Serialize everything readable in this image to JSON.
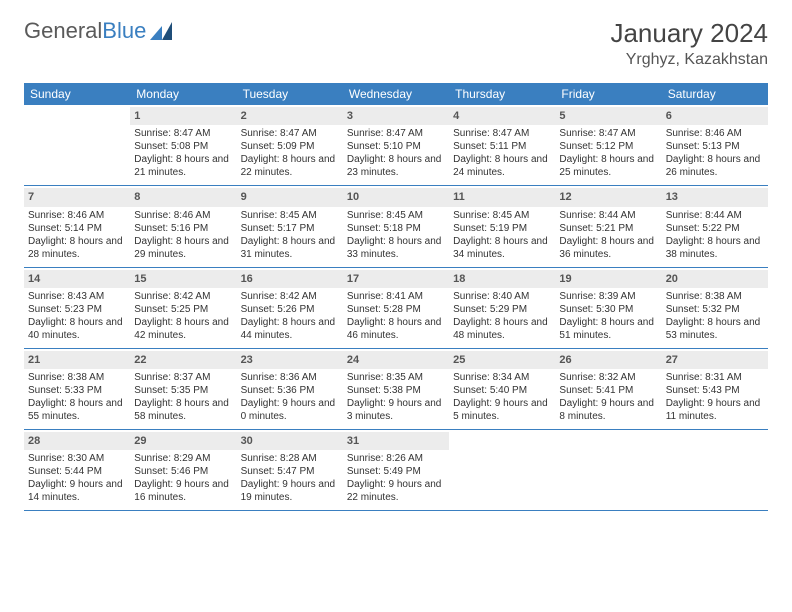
{
  "logo": {
    "text1": "General",
    "text2": "Blue"
  },
  "title": "January 2024",
  "location": "Yrghyz, Kazakhstan",
  "colors": {
    "header_bg": "#3a7fc0",
    "header_text": "#ffffff",
    "daynum_bg": "#ececec",
    "border": "#3a7fc0",
    "body_text": "#333333",
    "page_bg": "#ffffff"
  },
  "day_headers": [
    "Sunday",
    "Monday",
    "Tuesday",
    "Wednesday",
    "Thursday",
    "Friday",
    "Saturday"
  ],
  "weeks": [
    [
      {
        "n": "",
        "sr": "",
        "ss": "",
        "dl": ""
      },
      {
        "n": "1",
        "sr": "Sunrise: 8:47 AM",
        "ss": "Sunset: 5:08 PM",
        "dl": "Daylight: 8 hours and 21 minutes."
      },
      {
        "n": "2",
        "sr": "Sunrise: 8:47 AM",
        "ss": "Sunset: 5:09 PM",
        "dl": "Daylight: 8 hours and 22 minutes."
      },
      {
        "n": "3",
        "sr": "Sunrise: 8:47 AM",
        "ss": "Sunset: 5:10 PM",
        "dl": "Daylight: 8 hours and 23 minutes."
      },
      {
        "n": "4",
        "sr": "Sunrise: 8:47 AM",
        "ss": "Sunset: 5:11 PM",
        "dl": "Daylight: 8 hours and 24 minutes."
      },
      {
        "n": "5",
        "sr": "Sunrise: 8:47 AM",
        "ss": "Sunset: 5:12 PM",
        "dl": "Daylight: 8 hours and 25 minutes."
      },
      {
        "n": "6",
        "sr": "Sunrise: 8:46 AM",
        "ss": "Sunset: 5:13 PM",
        "dl": "Daylight: 8 hours and 26 minutes."
      }
    ],
    [
      {
        "n": "7",
        "sr": "Sunrise: 8:46 AM",
        "ss": "Sunset: 5:14 PM",
        "dl": "Daylight: 8 hours and 28 minutes."
      },
      {
        "n": "8",
        "sr": "Sunrise: 8:46 AM",
        "ss": "Sunset: 5:16 PM",
        "dl": "Daylight: 8 hours and 29 minutes."
      },
      {
        "n": "9",
        "sr": "Sunrise: 8:45 AM",
        "ss": "Sunset: 5:17 PM",
        "dl": "Daylight: 8 hours and 31 minutes."
      },
      {
        "n": "10",
        "sr": "Sunrise: 8:45 AM",
        "ss": "Sunset: 5:18 PM",
        "dl": "Daylight: 8 hours and 33 minutes."
      },
      {
        "n": "11",
        "sr": "Sunrise: 8:45 AM",
        "ss": "Sunset: 5:19 PM",
        "dl": "Daylight: 8 hours and 34 minutes."
      },
      {
        "n": "12",
        "sr": "Sunrise: 8:44 AM",
        "ss": "Sunset: 5:21 PM",
        "dl": "Daylight: 8 hours and 36 minutes."
      },
      {
        "n": "13",
        "sr": "Sunrise: 8:44 AM",
        "ss": "Sunset: 5:22 PM",
        "dl": "Daylight: 8 hours and 38 minutes."
      }
    ],
    [
      {
        "n": "14",
        "sr": "Sunrise: 8:43 AM",
        "ss": "Sunset: 5:23 PM",
        "dl": "Daylight: 8 hours and 40 minutes."
      },
      {
        "n": "15",
        "sr": "Sunrise: 8:42 AM",
        "ss": "Sunset: 5:25 PM",
        "dl": "Daylight: 8 hours and 42 minutes."
      },
      {
        "n": "16",
        "sr": "Sunrise: 8:42 AM",
        "ss": "Sunset: 5:26 PM",
        "dl": "Daylight: 8 hours and 44 minutes."
      },
      {
        "n": "17",
        "sr": "Sunrise: 8:41 AM",
        "ss": "Sunset: 5:28 PM",
        "dl": "Daylight: 8 hours and 46 minutes."
      },
      {
        "n": "18",
        "sr": "Sunrise: 8:40 AM",
        "ss": "Sunset: 5:29 PM",
        "dl": "Daylight: 8 hours and 48 minutes."
      },
      {
        "n": "19",
        "sr": "Sunrise: 8:39 AM",
        "ss": "Sunset: 5:30 PM",
        "dl": "Daylight: 8 hours and 51 minutes."
      },
      {
        "n": "20",
        "sr": "Sunrise: 8:38 AM",
        "ss": "Sunset: 5:32 PM",
        "dl": "Daylight: 8 hours and 53 minutes."
      }
    ],
    [
      {
        "n": "21",
        "sr": "Sunrise: 8:38 AM",
        "ss": "Sunset: 5:33 PM",
        "dl": "Daylight: 8 hours and 55 minutes."
      },
      {
        "n": "22",
        "sr": "Sunrise: 8:37 AM",
        "ss": "Sunset: 5:35 PM",
        "dl": "Daylight: 8 hours and 58 minutes."
      },
      {
        "n": "23",
        "sr": "Sunrise: 8:36 AM",
        "ss": "Sunset: 5:36 PM",
        "dl": "Daylight: 9 hours and 0 minutes."
      },
      {
        "n": "24",
        "sr": "Sunrise: 8:35 AM",
        "ss": "Sunset: 5:38 PM",
        "dl": "Daylight: 9 hours and 3 minutes."
      },
      {
        "n": "25",
        "sr": "Sunrise: 8:34 AM",
        "ss": "Sunset: 5:40 PM",
        "dl": "Daylight: 9 hours and 5 minutes."
      },
      {
        "n": "26",
        "sr": "Sunrise: 8:32 AM",
        "ss": "Sunset: 5:41 PM",
        "dl": "Daylight: 9 hours and 8 minutes."
      },
      {
        "n": "27",
        "sr": "Sunrise: 8:31 AM",
        "ss": "Sunset: 5:43 PM",
        "dl": "Daylight: 9 hours and 11 minutes."
      }
    ],
    [
      {
        "n": "28",
        "sr": "Sunrise: 8:30 AM",
        "ss": "Sunset: 5:44 PM",
        "dl": "Daylight: 9 hours and 14 minutes."
      },
      {
        "n": "29",
        "sr": "Sunrise: 8:29 AM",
        "ss": "Sunset: 5:46 PM",
        "dl": "Daylight: 9 hours and 16 minutes."
      },
      {
        "n": "30",
        "sr": "Sunrise: 8:28 AM",
        "ss": "Sunset: 5:47 PM",
        "dl": "Daylight: 9 hours and 19 minutes."
      },
      {
        "n": "31",
        "sr": "Sunrise: 8:26 AM",
        "ss": "Sunset: 5:49 PM",
        "dl": "Daylight: 9 hours and 22 minutes."
      },
      {
        "n": "",
        "sr": "",
        "ss": "",
        "dl": ""
      },
      {
        "n": "",
        "sr": "",
        "ss": "",
        "dl": ""
      },
      {
        "n": "",
        "sr": "",
        "ss": "",
        "dl": ""
      }
    ]
  ]
}
